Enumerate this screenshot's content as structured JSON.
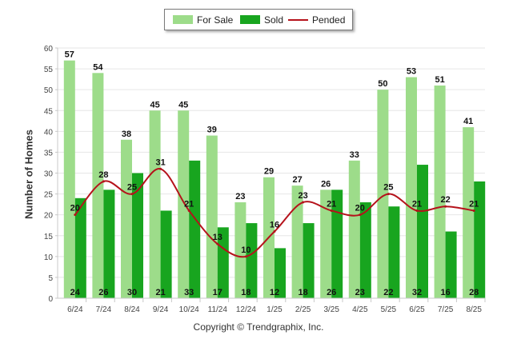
{
  "chart_data": {
    "type": "bar",
    "categories": [
      "6/24",
      "7/24",
      "8/24",
      "9/24",
      "10/24",
      "11/24",
      "12/24",
      "1/25",
      "2/25",
      "3/25",
      "4/25",
      "5/25",
      "6/25",
      "7/25",
      "8/25"
    ],
    "series": [
      {
        "name": "For Sale",
        "type": "bar",
        "color": "#9ddc8a",
        "values": [
          57,
          54,
          38,
          45,
          45,
          39,
          23,
          29,
          27,
          26,
          33,
          50,
          53,
          51,
          41
        ]
      },
      {
        "name": "Sold",
        "type": "bar",
        "color": "#18a51f",
        "values": [
          24,
          26,
          30,
          21,
          33,
          17,
          18,
          12,
          18,
          26,
          23,
          22,
          32,
          16,
          28
        ]
      },
      {
        "name": "Pended",
        "type": "line",
        "color": "#b5121b",
        "values": [
          20,
          28,
          25,
          31,
          21,
          13,
          10,
          16,
          23,
          21,
          20,
          25,
          21,
          22,
          21
        ]
      }
    ],
    "ylabel": "Number of Homes",
    "xlabel": "",
    "ylim": [
      0,
      60
    ],
    "yticks": [
      0,
      5,
      10,
      15,
      20,
      25,
      30,
      35,
      40,
      45,
      50,
      55,
      60
    ],
    "grid": true,
    "legend_position": "top-center"
  },
  "legend": {
    "for_sale": "For Sale",
    "sold": "Sold",
    "pended": "Pended"
  },
  "copyright": "Copyright © Trendgraphix, Inc."
}
